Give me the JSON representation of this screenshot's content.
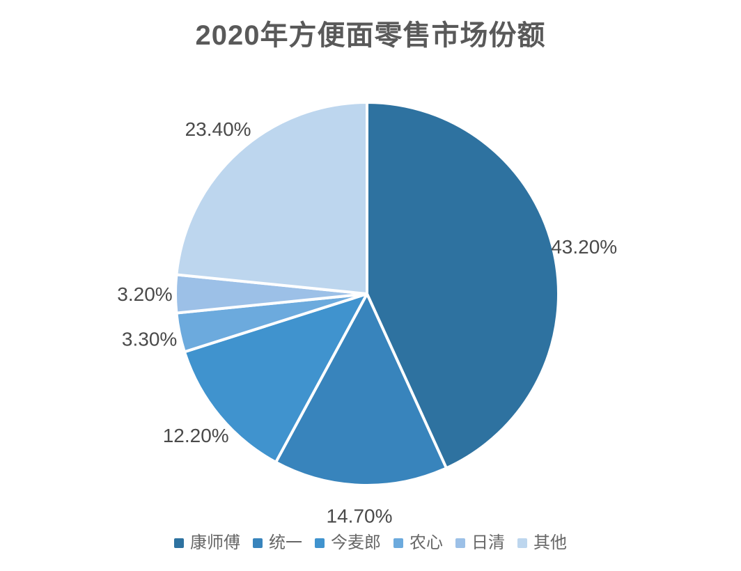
{
  "chart_data": {
    "type": "pie",
    "title": "2020年方便面零售市场份额",
    "series": [
      {
        "name": "康师傅",
        "value": 43.2,
        "label": "43.20%",
        "color": "#2E72A0"
      },
      {
        "name": "统一",
        "value": 14.7,
        "label": "14.70%",
        "color": "#3884BC"
      },
      {
        "name": "今麦郎",
        "value": 12.2,
        "label": "12.20%",
        "color": "#4093CE"
      },
      {
        "name": "农心",
        "value": 3.3,
        "label": "3.30%",
        "color": "#6CAADD"
      },
      {
        "name": "日清",
        "value": 3.2,
        "label": "3.20%",
        "color": "#9CC0E7"
      },
      {
        "name": "其他",
        "value": 23.4,
        "label": "23.40%",
        "color": "#BDD6EE"
      }
    ],
    "start_angle_deg": 0,
    "direction": "clockwise",
    "legend_position": "bottom",
    "title_color": "#595959",
    "label_color": "#4a4a4a",
    "legend_text_color": "#666666",
    "slice_border_color": "#ffffff"
  }
}
